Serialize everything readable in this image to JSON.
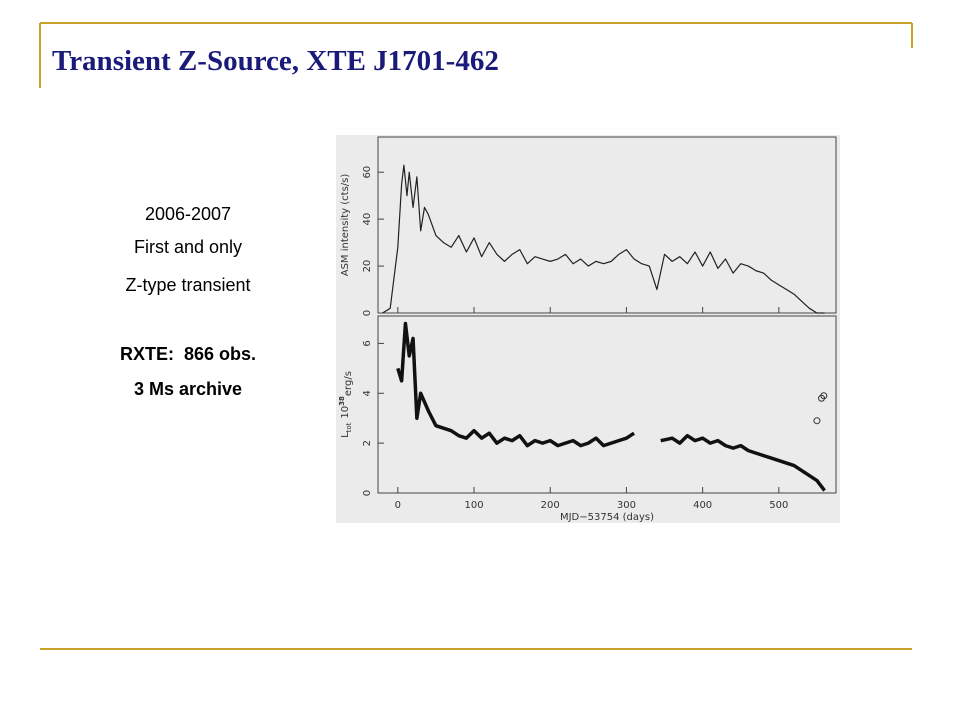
{
  "slide": {
    "title": "Transient Z-Source, XTE J1701-462",
    "lines": [
      "2006-2007",
      "First and only",
      "Z-type transient"
    ],
    "bold_lines": [
      "RXTE:  866 obs.",
      "3 Ms archive"
    ]
  },
  "chart_data": [
    {
      "type": "line",
      "ylabel": "ASM intensity (cts/s)",
      "xlim": [
        -26,
        575
      ],
      "xticks": [
        0,
        100,
        200,
        300,
        400,
        500
      ],
      "ylim": [
        0,
        75
      ],
      "yticks": [
        0,
        20,
        40,
        60
      ],
      "series": [
        {
          "color": "#222222",
          "x": [
            -20,
            -10,
            0,
            5,
            8,
            12,
            15,
            20,
            25,
            30,
            35,
            40,
            50,
            60,
            70,
            80,
            90,
            100,
            110,
            120,
            130,
            140,
            150,
            160,
            170,
            180,
            190,
            200,
            210,
            220,
            230,
            240,
            250,
            260,
            270,
            280,
            290,
            300,
            310,
            320,
            330,
            340,
            350,
            360,
            370,
            380,
            390,
            400,
            410,
            420,
            430,
            440,
            450,
            460,
            470,
            480,
            490,
            500,
            510,
            520,
            530,
            540,
            550,
            560
          ],
          "values": [
            0,
            2,
            28,
            55,
            63,
            50,
            60,
            45,
            58,
            35,
            45,
            42,
            33,
            30,
            28,
            33,
            26,
            32,
            24,
            30,
            25,
            22,
            25,
            27,
            21,
            24,
            23,
            22,
            23,
            25,
            21,
            23,
            20,
            22,
            21,
            22,
            25,
            27,
            23,
            21,
            20,
            10,
            25,
            22,
            24,
            21,
            26,
            20,
            26,
            19,
            23,
            17,
            21,
            20,
            18,
            17,
            14,
            12,
            10,
            8,
            5,
            2,
            0,
            0
          ]
        }
      ]
    },
    {
      "type": "line",
      "ylabel_parts": [
        "L",
        "tot",
        "10",
        "38",
        "erg/s"
      ],
      "xlabel": "MJD−53754 (days)",
      "xlim": [
        -26,
        575
      ],
      "xticks": [
        0,
        100,
        200,
        300,
        400,
        500
      ],
      "ylim": [
        0,
        7.1
      ],
      "yticks": [
        0,
        2,
        4,
        6
      ],
      "series": [
        {
          "color": "#111111",
          "x": [
            0,
            5,
            10,
            15,
            20,
            25,
            30,
            40,
            50,
            60,
            70,
            80,
            90,
            100,
            110,
            120,
            130,
            140,
            150,
            160,
            170,
            180,
            190,
            200,
            210,
            220,
            230,
            240,
            250,
            260,
            270,
            280,
            290,
            300,
            310,
            null,
            345,
            360,
            370,
            380,
            390,
            400,
            410,
            420,
            430,
            440,
            450,
            460,
            470,
            480,
            490,
            500,
            510,
            520,
            530,
            540,
            550,
            560
          ],
          "values": [
            5,
            4.5,
            6.8,
            5.5,
            6.2,
            3,
            4,
            3.3,
            2.7,
            2.6,
            2.5,
            2.3,
            2.2,
            2.5,
            2.2,
            2.4,
            2.0,
            2.2,
            2.1,
            2.3,
            1.9,
            2.1,
            2.0,
            2.1,
            1.9,
            2.0,
            2.1,
            1.9,
            2.0,
            2.2,
            1.9,
            2.0,
            2.1,
            2.2,
            2.4,
            null,
            2.1,
            2.2,
            2.0,
            2.3,
            2.1,
            2.2,
            2.0,
            2.1,
            1.9,
            1.8,
            1.9,
            1.7,
            1.6,
            1.5,
            1.4,
            1.3,
            1.2,
            1.1,
            0.9,
            0.7,
            0.5,
            0.1
          ]
        },
        {
          "type": "scatter",
          "color": "#333333",
          "x": [
            550,
            556,
            559
          ],
          "values": [
            2.9,
            3.8,
            3.9
          ]
        }
      ]
    }
  ]
}
